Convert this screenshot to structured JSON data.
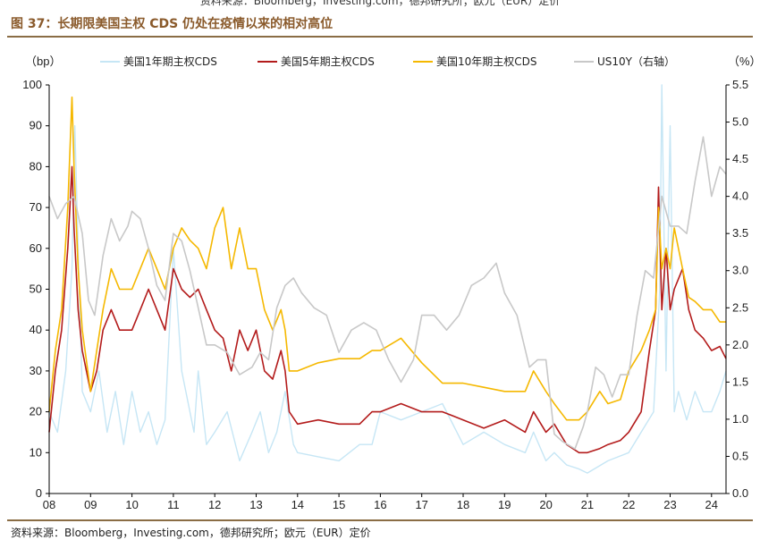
{
  "header": {
    "top_source": "资料来源：Bloomberg，Investing.com，德邦研究所；欧元（EUR）定价",
    "title": "图 37：长期限美国主权 CDS 仍处在疫情以来的相对高位"
  },
  "footer": {
    "source": "资料来源：Bloomberg，Investing.com，德邦研究所；欧元（EUR）定价"
  },
  "chart_data": {
    "type": "line",
    "left_unit": "（bp）",
    "right_unit": "（%）",
    "x_ticks": [
      "08",
      "09",
      "10",
      "11",
      "12",
      "13",
      "14",
      "15",
      "16",
      "17",
      "18",
      "19",
      "20",
      "21",
      "22",
      "23",
      "24"
    ],
    "x_range": [
      2008.0,
      2024.35
    ],
    "ylim_left": [
      0,
      100
    ],
    "yticks_left": [
      "0",
      "10",
      "20",
      "30",
      "40",
      "50",
      "60",
      "70",
      "80",
      "90",
      "100"
    ],
    "ylim_right": [
      0,
      5.5
    ],
    "yticks_right": [
      "0.0",
      "0.5",
      "1.0",
      "1.5",
      "2.0",
      "2.5",
      "3.0",
      "3.5",
      "4.0",
      "4.5",
      "5.0",
      "5.5"
    ],
    "grid": false,
    "legend_position": "top",
    "series": [
      {
        "name": "美国1年期主权CDS",
        "axis": "left",
        "color": "#c6e6f5",
        "x": [
          2008.0,
          2008.2,
          2008.4,
          2008.55,
          2008.62,
          2008.7,
          2008.8,
          2009.0,
          2009.2,
          2009.4,
          2009.6,
          2009.8,
          2010.0,
          2010.2,
          2010.4,
          2010.6,
          2010.8,
          2011.0,
          2011.2,
          2011.5,
          2011.6,
          2011.8,
          2012.0,
          2012.3,
          2012.6,
          2012.9,
          2013.1,
          2013.3,
          2013.5,
          2013.7,
          2013.9,
          2014.0,
          2014.5,
          2015.0,
          2015.5,
          2015.8,
          2016.0,
          2016.5,
          2017.0,
          2017.5,
          2018.0,
          2018.5,
          2019.0,
          2019.5,
          2019.7,
          2020.0,
          2020.2,
          2020.5,
          2020.8,
          2021.0,
          2021.5,
          2022.0,
          2022.3,
          2022.6,
          2022.75,
          2022.8,
          2022.9,
          2023.0,
          2023.1,
          2023.2,
          2023.4,
          2023.6,
          2023.8,
          2024.0,
          2024.2,
          2024.35
        ],
        "y": [
          20,
          15,
          30,
          55,
          90,
          60,
          25,
          20,
          30,
          15,
          25,
          12,
          25,
          15,
          20,
          12,
          18,
          60,
          30,
          15,
          30,
          12,
          15,
          20,
          8,
          15,
          20,
          10,
          15,
          25,
          12,
          10,
          9,
          8,
          12,
          12,
          20,
          18,
          20,
          22,
          12,
          15,
          12,
          10,
          15,
          8,
          10,
          7,
          6,
          5,
          8,
          10,
          15,
          20,
          50,
          100,
          30,
          90,
          20,
          25,
          18,
          25,
          20,
          20,
          25,
          30
        ]
      },
      {
        "name": "美国5年期主权CDS",
        "axis": "left",
        "color": "#b31b1b",
        "x": [
          2008.0,
          2008.15,
          2008.3,
          2008.45,
          2008.55,
          2008.6,
          2008.7,
          2008.8,
          2009.0,
          2009.15,
          2009.3,
          2009.5,
          2009.7,
          2010.0,
          2010.2,
          2010.4,
          2010.6,
          2010.8,
          2011.0,
          2011.2,
          2011.4,
          2011.6,
          2011.8,
          2012.0,
          2012.2,
          2012.4,
          2012.6,
          2012.8,
          2013.0,
          2013.2,
          2013.4,
          2013.6,
          2013.7,
          2013.8,
          2014.0,
          2014.5,
          2015.0,
          2015.5,
          2015.8,
          2016.0,
          2016.5,
          2017.0,
          2017.5,
          2018.0,
          2018.5,
          2019.0,
          2019.5,
          2019.7,
          2020.0,
          2020.2,
          2020.5,
          2020.8,
          2021.0,
          2021.3,
          2021.5,
          2021.8,
          2022.0,
          2022.3,
          2022.5,
          2022.65,
          2022.72,
          2022.8,
          2022.9,
          2023.0,
          2023.1,
          2023.3,
          2023.45,
          2023.6,
          2023.8,
          2024.0,
          2024.2,
          2024.35
        ],
        "y": [
          15,
          30,
          40,
          60,
          80,
          65,
          45,
          35,
          25,
          30,
          40,
          45,
          40,
          40,
          45,
          50,
          45,
          40,
          55,
          50,
          48,
          50,
          45,
          40,
          38,
          30,
          40,
          35,
          40,
          30,
          28,
          35,
          30,
          20,
          17,
          18,
          17,
          17,
          20,
          20,
          22,
          20,
          20,
          18,
          16,
          18,
          15,
          20,
          15,
          17,
          12,
          10,
          10,
          11,
          12,
          13,
          15,
          20,
          35,
          45,
          75,
          45,
          60,
          45,
          50,
          55,
          45,
          40,
          38,
          35,
          36,
          33
        ]
      },
      {
        "name": "美国10年期主权CDS",
        "axis": "left",
        "color": "#f5b800",
        "x": [
          2008.0,
          2008.15,
          2008.3,
          2008.45,
          2008.55,
          2008.6,
          2008.7,
          2008.8,
          2009.0,
          2009.15,
          2009.3,
          2009.5,
          2009.7,
          2010.0,
          2010.2,
          2010.4,
          2010.6,
          2010.8,
          2011.0,
          2011.2,
          2011.4,
          2011.6,
          2011.8,
          2012.0,
          2012.2,
          2012.4,
          2012.6,
          2012.8,
          2013.0,
          2013.2,
          2013.4,
          2013.6,
          2013.7,
          2013.8,
          2014.0,
          2014.5,
          2015.0,
          2015.5,
          2015.8,
          2016.0,
          2016.5,
          2017.0,
          2017.5,
          2018.0,
          2018.5,
          2019.0,
          2019.5,
          2019.7,
          2020.0,
          2020.2,
          2020.5,
          2020.8,
          2021.0,
          2021.3,
          2021.5,
          2021.8,
          2022.0,
          2022.3,
          2022.5,
          2022.65,
          2022.72,
          2022.8,
          2022.9,
          2023.0,
          2023.1,
          2023.3,
          2023.45,
          2023.6,
          2023.8,
          2024.0,
          2024.2,
          2024.35
        ],
        "y": [
          20,
          35,
          45,
          70,
          97,
          80,
          55,
          40,
          25,
          35,
          45,
          55,
          50,
          50,
          55,
          60,
          55,
          50,
          60,
          65,
          62,
          60,
          55,
          65,
          70,
          55,
          65,
          55,
          55,
          45,
          40,
          45,
          40,
          30,
          30,
          32,
          33,
          33,
          35,
          35,
          38,
          32,
          27,
          27,
          26,
          25,
          25,
          30,
          25,
          22,
          18,
          18,
          20,
          25,
          22,
          23,
          30,
          35,
          40,
          45,
          70,
          55,
          60,
          55,
          65,
          55,
          48,
          47,
          45,
          45,
          42,
          42
        ]
      },
      {
        "name": "US10Y（右轴）",
        "axis": "right",
        "color": "#c8c8c8",
        "x": [
          2008.0,
          2008.2,
          2008.4,
          2008.6,
          2008.8,
          2008.95,
          2009.1,
          2009.3,
          2009.5,
          2009.7,
          2009.9,
          2010.0,
          2010.2,
          2010.4,
          2010.6,
          2010.8,
          2011.0,
          2011.2,
          2011.4,
          2011.6,
          2011.8,
          2012.0,
          2012.3,
          2012.6,
          2012.9,
          2013.1,
          2013.3,
          2013.5,
          2013.7,
          2013.9,
          2014.1,
          2014.4,
          2014.7,
          2015.0,
          2015.3,
          2015.6,
          2015.9,
          2016.2,
          2016.5,
          2016.8,
          2017.0,
          2017.3,
          2017.6,
          2017.9,
          2018.2,
          2018.5,
          2018.8,
          2019.0,
          2019.3,
          2019.6,
          2019.8,
          2020.0,
          2020.2,
          2020.4,
          2020.7,
          2020.9,
          2021.0,
          2021.2,
          2021.4,
          2021.6,
          2021.8,
          2022.0,
          2022.2,
          2022.4,
          2022.6,
          2022.8,
          2023.0,
          2023.2,
          2023.4,
          2023.6,
          2023.8,
          2024.0,
          2024.2,
          2024.35
        ],
        "y": [
          4.0,
          3.7,
          3.9,
          4.0,
          3.5,
          2.6,
          2.4,
          3.2,
          3.7,
          3.4,
          3.6,
          3.8,
          3.7,
          3.3,
          2.8,
          2.6,
          3.5,
          3.4,
          3.0,
          2.5,
          2.0,
          2.0,
          1.9,
          1.6,
          1.7,
          1.9,
          1.8,
          2.5,
          2.8,
          2.9,
          2.7,
          2.5,
          2.4,
          1.9,
          2.2,
          2.3,
          2.2,
          1.8,
          1.5,
          1.8,
          2.4,
          2.4,
          2.2,
          2.4,
          2.8,
          2.9,
          3.1,
          2.7,
          2.4,
          1.7,
          1.8,
          1.8,
          0.8,
          0.7,
          0.6,
          0.9,
          1.1,
          1.7,
          1.6,
          1.3,
          1.6,
          1.6,
          2.4,
          3.0,
          2.9,
          4.0,
          3.6,
          3.6,
          3.5,
          4.2,
          4.8,
          4.0,
          4.4,
          4.3
        ]
      }
    ]
  }
}
